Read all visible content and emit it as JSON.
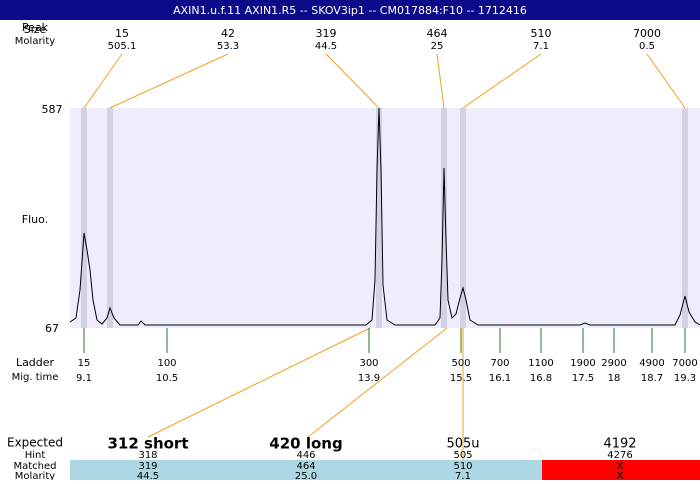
{
  "header": {
    "title": "AXIN1.u.f.11  AXIN1.R5 -- SKOV3ip1 -- CM017884:F10 -- 1712416"
  },
  "top_labels": [
    "Size",
    "Peak",
    "Molarity"
  ],
  "peaks": [
    {
      "size": "15",
      "molarity": "505.1"
    },
    {
      "size": "42",
      "molarity": "53.3"
    },
    {
      "size": "319",
      "molarity": "44.5"
    },
    {
      "size": "464",
      "molarity": "25"
    },
    {
      "size": "510",
      "molarity": "7.1"
    },
    {
      "size": "7000",
      "molarity": "0.5"
    }
  ],
  "y_axis": {
    "label": "Fluo.",
    "max": "587",
    "min": "67"
  },
  "ladder": {
    "label": "Ladder",
    "time_label": "Mig. time",
    "sizes": [
      "15",
      "100",
      "300",
      "500",
      "700",
      "1100",
      "1900",
      "2900",
      "4900",
      "7000"
    ],
    "times": [
      "9.1",
      "10.5",
      "13.9",
      "15.5",
      "16.1",
      "16.8",
      "17.5",
      "18",
      "18.7",
      "19.3"
    ]
  },
  "expected": {
    "label": "Expected",
    "items": [
      "312 short",
      "420 long",
      "505u",
      "4192"
    ]
  },
  "table": {
    "row_labels": [
      "Hint",
      "Matched",
      "Molarity"
    ],
    "rows": [
      [
        "318",
        "446",
        "505",
        "4276"
      ],
      [
        "319",
        "464",
        "510",
        "X"
      ],
      [
        "44.5",
        "25.0",
        "7.1",
        "X"
      ]
    ]
  }
}
